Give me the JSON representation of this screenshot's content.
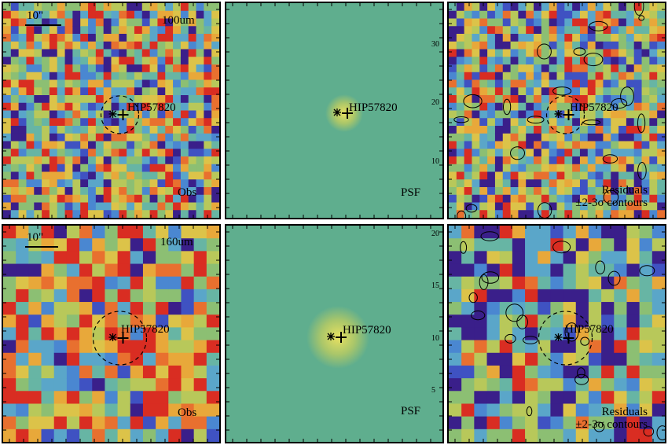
{
  "star_name": "HIP57820",
  "rows": [
    {
      "band": "100um",
      "scale_label": "10\"",
      "obs_label": "Obs",
      "psf_label": "PSF",
      "res_label_1": "Residuals",
      "res_label_2": "±2-3σ contours",
      "psf_ticks": [
        "30",
        "20",
        "10"
      ]
    },
    {
      "band": "160um",
      "scale_label": "10\"",
      "obs_label": "Obs",
      "psf_label": "PSF",
      "res_label_1": "Residuals",
      "res_label_2": "±2-3σ contours",
      "psf_ticks": [
        "20",
        "15",
        "10",
        "5"
      ]
    }
  ],
  "colors": {
    "psf_background": "#5fae8e",
    "psf_core": "#e8e060",
    "map_palette": [
      "#3a1f8a",
      "#3f52c2",
      "#4a87d1",
      "#5aa6c9",
      "#67b5a4",
      "#8cbf73",
      "#b8c85a",
      "#dcc349",
      "#e8a83a",
      "#e8702f",
      "#d92d22"
    ]
  }
}
